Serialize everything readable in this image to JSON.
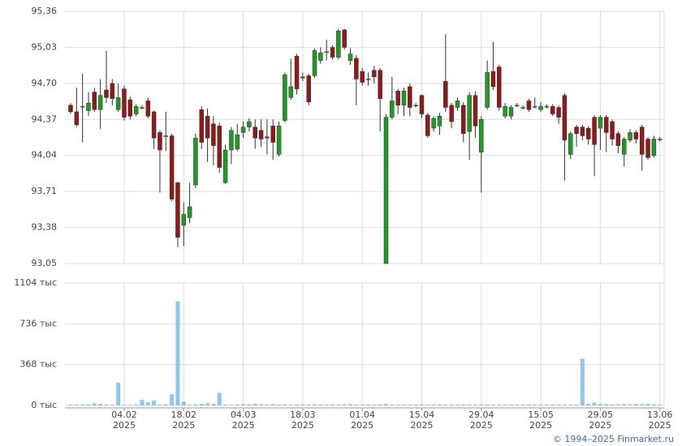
{
  "chart_data": {
    "type": "candlestick",
    "categories": [
      null,
      null,
      null,
      null,
      null,
      null,
      null,
      null,
      null,
      "04.02",
      null,
      null,
      null,
      null,
      null,
      null,
      null,
      null,
      null,
      "18.02",
      null,
      null,
      null,
      null,
      null,
      null,
      null,
      null,
      null,
      "04.03",
      null,
      null,
      null,
      null,
      null,
      null,
      null,
      null,
      null,
      "18.03",
      null,
      null,
      null,
      null,
      null,
      null,
      null,
      null,
      null,
      "01.04",
      null,
      null,
      null,
      null,
      null,
      null,
      null,
      null,
      null,
      "15.04",
      null,
      null,
      null,
      null,
      null,
      null,
      null,
      null,
      null,
      "29.04",
      null,
      null,
      null,
      null,
      null,
      null,
      null,
      null,
      null,
      "15.05",
      null,
      null,
      null,
      null,
      null,
      null,
      null,
      null,
      null,
      "29.05",
      null,
      null,
      null,
      null,
      null,
      null,
      null,
      null,
      null,
      "13.06"
    ],
    "category_years": [
      null,
      null,
      null,
      null,
      null,
      null,
      null,
      null,
      null,
      "2025",
      null,
      null,
      null,
      null,
      null,
      null,
      null,
      null,
      null,
      "2025",
      null,
      null,
      null,
      null,
      null,
      null,
      null,
      null,
      null,
      "2025",
      null,
      null,
      null,
      null,
      null,
      null,
      null,
      null,
      null,
      "2025",
      null,
      null,
      null,
      null,
      null,
      null,
      null,
      null,
      null,
      "2025",
      null,
      null,
      null,
      null,
      null,
      null,
      null,
      null,
      null,
      "2025",
      null,
      null,
      null,
      null,
      null,
      null,
      null,
      null,
      null,
      "2025",
      null,
      null,
      null,
      null,
      null,
      null,
      null,
      null,
      null,
      "2025",
      null,
      null,
      null,
      null,
      null,
      null,
      null,
      null,
      null,
      "2025",
      null,
      null,
      null,
      null,
      null,
      null,
      null,
      null,
      null,
      "2025"
    ],
    "open": [
      94.5,
      94.44,
      94.49,
      94.45,
      94.62,
      94.46,
      94.64,
      94.7,
      94.46,
      94.65,
      94.55,
      94.42,
      94.48,
      94.54,
      94.44,
      94.25,
      94.22,
      94.22,
      93.79,
      93.4,
      93.47,
      93.77,
      94.46,
      94.4,
      94.33,
      94.31,
      93.79,
      94.09,
      94.1,
      94.25,
      94.3,
      94.3,
      94.27,
      94.21,
      94.31,
      94.05,
      94.36,
      94.57,
      94.95,
      94.76,
      94.77,
      94.77,
      94.91,
      94.99,
      95.03,
      94.94,
      95.19,
      94.91,
      94.93,
      94.81,
      94.74,
      94.82,
      94.82,
      93.05,
      94.39,
      94.63,
      94.5,
      94.67,
      94.5,
      94.59,
      94.41,
      94.29,
      94.31,
      94.72,
      94.5,
      94.48,
      94.5,
      94.26,
      94.59,
      94.07,
      94.48,
      94.81,
      94.85,
      94.4,
      94.4,
      94.5,
      94.48,
      94.54,
      94.49,
      94.46,
      94.49,
      94.49,
      94.48,
      94.59,
      94.05,
      94.3,
      94.3,
      94.29,
      94.39,
      94.29,
      94.39,
      94.35,
      94.24,
      94.05,
      94.18,
      94.25,
      94.3,
      94.19,
      94.04,
      94.19
    ],
    "high": [
      94.52,
      94.66,
      94.79,
      94.62,
      94.66,
      94.74,
      95.0,
      94.74,
      94.7,
      94.68,
      94.58,
      94.51,
      94.5,
      94.57,
      94.45,
      94.27,
      94.44,
      94.24,
      93.8,
      93.61,
      93.79,
      94.24,
      94.49,
      94.47,
      94.4,
      94.34,
      94.14,
      94.3,
      94.33,
      94.35,
      94.38,
      94.37,
      94.37,
      94.37,
      94.37,
      94.35,
      94.8,
      94.93,
      94.97,
      94.8,
      94.79,
      95.02,
      95.03,
      95.1,
      95.05,
      95.2,
      95.2,
      95.02,
      94.96,
      94.84,
      94.8,
      94.86,
      94.84,
      94.42,
      94.76,
      94.65,
      94.66,
      94.7,
      94.52,
      94.6,
      94.43,
      94.4,
      94.43,
      95.15,
      94.52,
      94.57,
      94.53,
      94.62,
      94.63,
      94.4,
      94.91,
      95.08,
      94.87,
      94.52,
      94.5,
      94.52,
      94.5,
      94.56,
      94.57,
      94.53,
      94.51,
      94.51,
      94.5,
      94.61,
      94.26,
      94.32,
      94.32,
      94.31,
      94.41,
      94.41,
      94.41,
      94.37,
      94.26,
      94.21,
      94.28,
      94.27,
      94.32,
      94.21,
      94.22,
      94.21
    ],
    "low": [
      94.42,
      94.3,
      94.16,
      94.4,
      94.44,
      94.28,
      94.52,
      94.5,
      94.44,
      94.36,
      94.37,
      94.4,
      94.46,
      94.38,
      94.1,
      93.7,
      94.08,
      93.62,
      93.2,
      93.21,
      93.42,
      93.74,
      94.1,
      93.98,
      93.95,
      93.88,
      93.78,
      93.96,
      94.08,
      94.2,
      94.26,
      94.1,
      94.12,
      94.05,
      94.0,
      94.03,
      94.34,
      94.55,
      94.6,
      94.72,
      94.5,
      94.75,
      94.88,
      94.91,
      94.92,
      94.92,
      95.01,
      94.87,
      94.5,
      94.68,
      94.68,
      94.7,
      94.26,
      93.05,
      94.37,
      94.42,
      94.4,
      94.4,
      94.48,
      94.38,
      94.2,
      94.26,
      94.23,
      94.44,
      94.29,
      94.45,
      94.16,
      94.0,
      94.2,
      93.7,
      94.46,
      94.64,
      94.45,
      94.38,
      94.37,
      94.48,
      94.46,
      94.44,
      94.47,
      94.44,
      94.47,
      94.4,
      94.33,
      93.81,
      94.01,
      94.12,
      94.18,
      94.14,
      93.85,
      94.09,
      94.07,
      94.13,
      94.06,
      93.94,
      94.16,
      94.15,
      93.9,
      94.0,
      94.02,
      94.17
    ],
    "close": [
      94.44,
      94.32,
      94.49,
      94.52,
      94.46,
      94.59,
      94.57,
      94.56,
      94.57,
      94.39,
      94.4,
      94.49,
      94.48,
      94.4,
      94.2,
      94.09,
      94.22,
      93.64,
      93.29,
      93.5,
      93.57,
      94.2,
      94.16,
      94.2,
      94.13,
      93.93,
      94.09,
      94.27,
      94.23,
      94.3,
      94.35,
      94.2,
      94.19,
      94.2,
      94.16,
      94.31,
      94.78,
      94.67,
      94.65,
      94.75,
      94.53,
      95.0,
      94.98,
      94.99,
      94.94,
      95.18,
      95.03,
      94.97,
      94.74,
      94.71,
      94.74,
      94.76,
      94.56,
      94.39,
      94.54,
      94.5,
      94.63,
      94.48,
      94.5,
      94.42,
      94.22,
      94.38,
      94.4,
      94.48,
      94.35,
      94.54,
      94.24,
      94.59,
      94.31,
      94.37,
      94.8,
      94.67,
      94.48,
      94.49,
      94.48,
      94.5,
      94.48,
      94.46,
      94.49,
      94.49,
      94.49,
      94.42,
      94.39,
      94.18,
      94.24,
      94.24,
      94.22,
      94.19,
      94.14,
      94.39,
      94.25,
      94.19,
      94.13,
      94.19,
      94.25,
      94.19,
      94.05,
      94.02,
      94.19,
      94.19
    ],
    "volume": [
      8,
      8,
      8,
      10,
      18,
      15,
      8,
      6,
      205,
      6,
      5,
      8,
      50,
      30,
      45,
      8,
      10,
      100,
      940,
      35,
      8,
      10,
      15,
      20,
      15,
      115,
      8,
      6,
      8,
      12,
      10,
      15,
      10,
      8,
      12,
      8,
      10,
      6,
      8,
      10,
      8,
      10,
      8,
      8,
      10,
      8,
      10,
      12,
      8,
      8,
      8,
      8,
      10,
      12,
      8,
      8,
      8,
      8,
      8,
      8,
      8,
      8,
      8,
      8,
      8,
      8,
      8,
      8,
      8,
      8,
      8,
      8,
      8,
      8,
      8,
      8,
      8,
      8,
      8,
      8,
      8,
      8,
      8,
      8,
      8,
      8,
      420,
      15,
      25,
      15,
      12,
      10,
      10,
      12,
      10,
      12,
      12,
      15,
      10,
      8
    ],
    "up_color": "#1f9a22",
    "down_color": "#8e1b1b",
    "volume_color": "#8fc6ee",
    "ylim": [
      93.05,
      95.36
    ],
    "yticks": [
      {
        "value": 93.05,
        "label": "93,05"
      },
      {
        "value": 93.38,
        "label": "93,38"
      },
      {
        "value": 93.71,
        "label": "93,71"
      },
      {
        "value": 94.04,
        "label": "94,04"
      },
      {
        "value": 94.37,
        "label": "94,37"
      },
      {
        "value": 94.7,
        "label": "94,70"
      },
      {
        "value": 95.03,
        "label": "95,03"
      },
      {
        "value": 95.36,
        "label": "95,36"
      }
    ],
    "y2lim": [
      0,
      1104
    ],
    "y2ticks": [
      {
        "value": 0,
        "label": "0 тыс"
      },
      {
        "value": 368,
        "label": "368 тыс"
      },
      {
        "value": 736,
        "label": "736 тыс"
      },
      {
        "value": 1104,
        "label": "1104 тыс"
      }
    ],
    "grid": true,
    "source": "© 1994–2025 Finmarket.ru"
  }
}
